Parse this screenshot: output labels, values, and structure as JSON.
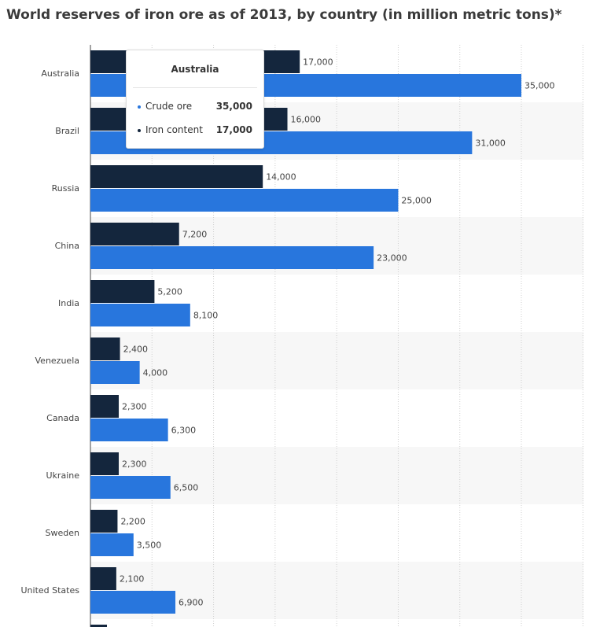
{
  "chart_data": {
    "type": "bar",
    "orientation": "horizontal",
    "title": "World reserves of iron ore as of 2013, by country (in million metric tons)*",
    "xlabel": "",
    "ylabel": "",
    "xlim": [
      0,
      40000
    ],
    "grid": true,
    "categories": [
      "Australia",
      "Brazil",
      "Russia",
      "China",
      "India",
      "Venezuela",
      "Canada",
      "Ukraine",
      "Sweden",
      "United States"
    ],
    "series": [
      {
        "name": "Iron content",
        "color": "#14263d",
        "values": [
          17000,
          16000,
          14000,
          7200,
          5200,
          2400,
          2300,
          2300,
          2200,
          2100
        ],
        "labels": [
          "17,000",
          "16,000",
          "14,000",
          "7,200",
          "5,200",
          "2,400",
          "2,300",
          "2,300",
          "2,200",
          "2,100"
        ]
      },
      {
        "name": "Crude ore",
        "color": "#2876dd",
        "values": [
          35000,
          31000,
          25000,
          23000,
          8100,
          4000,
          6300,
          6500,
          3500,
          6900
        ],
        "labels": [
          "35,000",
          "31,000",
          "25,000",
          "23,000",
          "8,100",
          "4,000",
          "6,300",
          "6,500",
          "3,500",
          "6,900"
        ]
      }
    ]
  },
  "tooltip": {
    "title": "Australia",
    "rows": [
      {
        "label": "Crude ore",
        "value": "35,000",
        "color": "#2876dd"
      },
      {
        "label": "Iron content",
        "value": "17,000",
        "color": "#14263d"
      }
    ]
  }
}
